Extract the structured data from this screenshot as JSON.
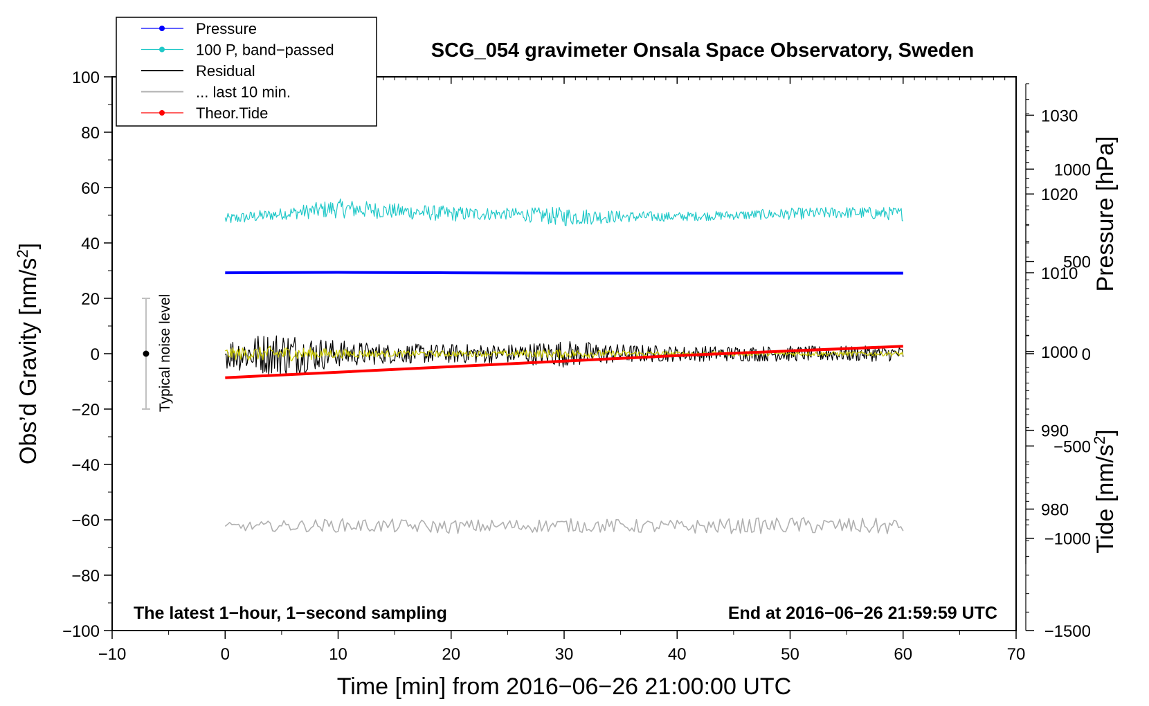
{
  "chart_data": {
    "type": "line",
    "title": "SCG_054 gravimeter Onsala Space Observatory, Sweden",
    "xlabel": "Time [min] from 2016−06−26 21:00:00 UTC",
    "ylabel_left": "Obs’d Gravity [nm/s",
    "ylabel_left_sup": "2",
    "ylabel_left_end": "]",
    "ylabel_right_pressure": "Pressure [hPa]",
    "ylabel_right_tide": "Tide [nm/s",
    "ylabel_right_tide_sup": "2",
    "ylabel_right_tide_end": "]",
    "xlim": [
      -10,
      70
    ],
    "ylim": [
      -100,
      100
    ],
    "pressure_axis_range": [
      964.58,
      1034.87
    ],
    "tide_axis_range": [
      -1500,
      1500
    ],
    "x_ticks": [
      -10,
      0,
      10,
      20,
      30,
      40,
      50,
      60,
      70
    ],
    "x_tick_labels": [
      "−10",
      "0",
      "10",
      "20",
      "30",
      "40",
      "50",
      "60",
      "70"
    ],
    "y_ticks": [
      -100,
      -80,
      -60,
      -40,
      -20,
      0,
      20,
      40,
      60,
      80,
      100
    ],
    "y_tick_labels": [
      "−100",
      "−80",
      "−60",
      "−40",
      "−20",
      "0",
      "20",
      "40",
      "60",
      "80",
      "100"
    ],
    "pressure_ticks": [
      980,
      990,
      1000,
      1010,
      1020,
      1030
    ],
    "pressure_tick_labels": [
      "980",
      "990",
      "1000",
      "1010",
      "1020",
      "1030"
    ],
    "tide_ticks": [
      -1500,
      -1000,
      -500,
      0,
      500,
      1000
    ],
    "tide_tick_labels": [
      "−1500",
      "−1000",
      "−500",
      "0",
      "500",
      "1000"
    ],
    "note_left": "The latest 1−hour, 1−second sampling",
    "note_right": "End at 2016−06−26 21:59:59 UTC",
    "noise_bar": {
      "label": "Typical noise level",
      "x": -7,
      "center": 0,
      "low": -20,
      "high": 20
    },
    "legend": [
      {
        "label": "Pressure",
        "color": "#0000ff",
        "marker": true
      },
      {
        "label": "100 P, band−passed",
        "color": "#20c8c8",
        "marker": true
      },
      {
        "label": "Residual",
        "color": "#000000",
        "marker": false
      },
      {
        "label": "... last 10 min.",
        "color": "#b0b0b0",
        "marker": false
      },
      {
        "label": "Theor.Tide",
        "color": "#ff0000",
        "marker": true
      }
    ],
    "series": [
      {
        "name": "Pressure",
        "color": "#0000ff",
        "axis": "pressure",
        "x": [
          0,
          10,
          20,
          30,
          40,
          50,
          60
        ],
        "values": [
          1010.0,
          1010.05,
          1010.0,
          1009.95,
          1009.95,
          1009.95,
          1009.95
        ]
      },
      {
        "name": "100 P, band-passed",
        "color": "#20c8c8",
        "axis": "gravity",
        "x": [
          0,
          5,
          10,
          15,
          20,
          25,
          30,
          35,
          40,
          45,
          50,
          55,
          60
        ],
        "values": [
          48.5,
          50.5,
          52.5,
          51.5,
          50.5,
          50.5,
          49.5,
          49.5,
          49.5,
          50,
          50.5,
          51,
          50.5
        ],
        "amplitude": [
          1.5,
          1.5,
          2.5,
          2,
          2,
          1.5,
          2.5,
          1.5,
          1.2,
          1.2,
          1.5,
          1.5,
          1.8
        ]
      },
      {
        "name": "Residual",
        "color": "#000000",
        "axis": "gravity",
        "x": [
          0,
          5,
          10,
          15,
          20,
          25,
          30,
          35,
          40,
          45,
          50,
          55,
          60
        ],
        "values": [
          0,
          0,
          0,
          0,
          0,
          0,
          0,
          0,
          0,
          0,
          0,
          0,
          0
        ],
        "amplitude": [
          4,
          6,
          3.5,
          2.5,
          2.5,
          2.5,
          3.5,
          2.5,
          2,
          2,
          2,
          2,
          2
        ]
      },
      {
        "name": "Residual (smoothed)",
        "color": "#c8c800",
        "axis": "gravity",
        "x": [
          0,
          5,
          10,
          15,
          20,
          25,
          30,
          35,
          40,
          45,
          50,
          55,
          60
        ],
        "values": [
          0,
          0,
          0,
          0,
          0,
          0,
          0,
          0,
          0,
          0,
          0,
          0,
          0
        ],
        "amplitude": [
          1.5,
          2,
          1.2,
          0.8,
          0.8,
          0.8,
          1.2,
          0.8,
          0.6,
          0.6,
          0.6,
          0.6,
          0.6
        ]
      },
      {
        "name": "... last 10 min.",
        "color": "#b0b0b0",
        "axis": "gravity",
        "x": [
          0,
          10,
          20,
          30,
          40,
          50,
          60
        ],
        "values": [
          -62.5,
          -62,
          -62.5,
          -62,
          -62.5,
          -62,
          -62.5
        ],
        "amplitude": [
          1.5,
          2.5,
          2.5,
          2.5,
          2.5,
          3,
          3
        ]
      },
      {
        "name": "Theor.Tide",
        "color": "#ff0000",
        "axis": "tide",
        "x": [
          0,
          10,
          20,
          30,
          40,
          50,
          60
        ],
        "values": [
          -130,
          -100,
          -70,
          -40,
          -10,
          15,
          40
        ]
      }
    ]
  }
}
